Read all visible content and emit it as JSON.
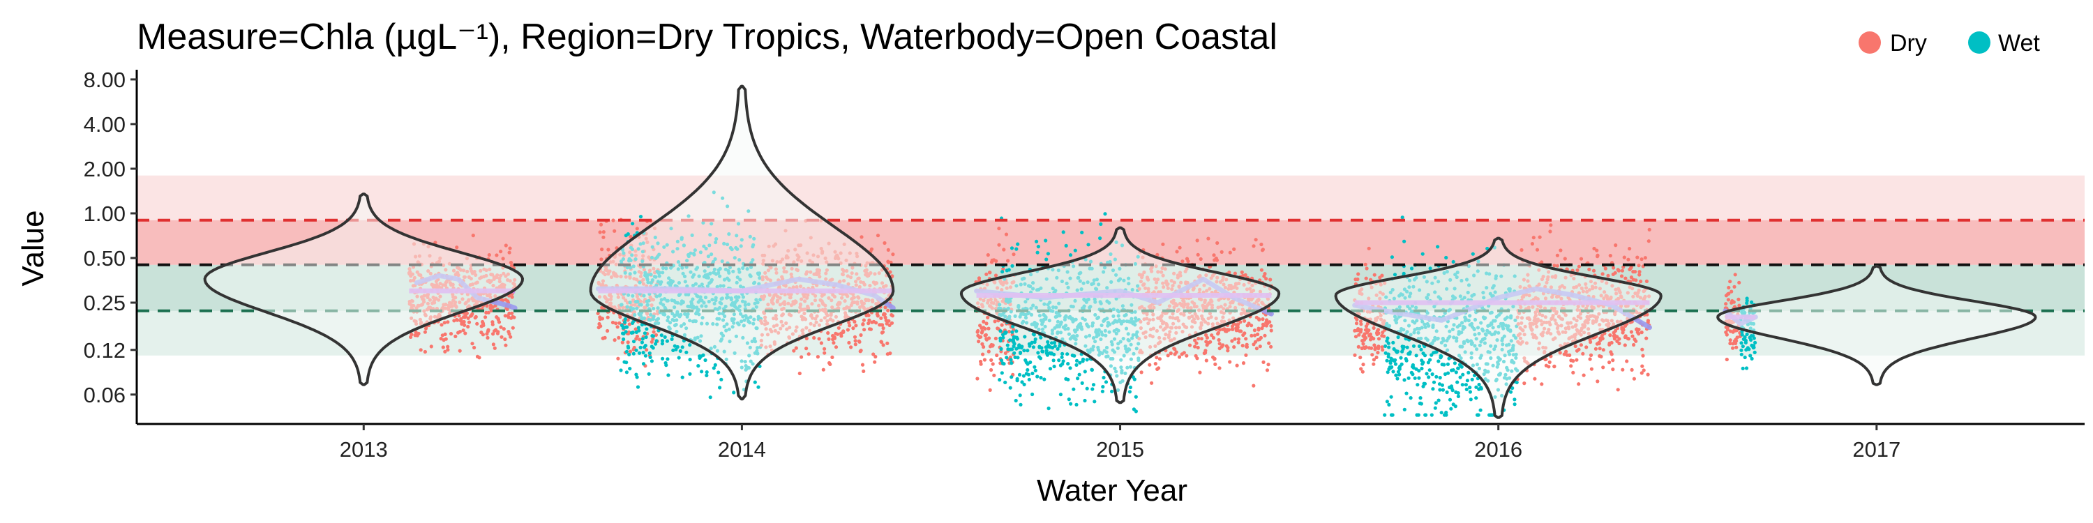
{
  "chart_data": {
    "type": "violin",
    "title": "Measure=Chla (µgL⁻¹), Region=Dry Tropics, Waterbody=Open Coastal",
    "xlabel": "Water Year",
    "ylabel": "Value",
    "y_scale": "log",
    "y_ticks": [
      0.06,
      0.12,
      0.25,
      0.5,
      1.0,
      2.0,
      4.0,
      8.0
    ],
    "y_tick_labels": [
      "0.06",
      "0.12",
      "0.25",
      "0.50",
      "1.00",
      "2.00",
      "4.00",
      "8.00"
    ],
    "ylim": [
      0.038,
      9.3
    ],
    "x_ticks": [
      2013,
      2014,
      2015,
      2016,
      2017
    ],
    "x_tick_labels": [
      "2013",
      "2014",
      "2015",
      "2016",
      "2017"
    ],
    "xlim": [
      2012.4,
      2017.55
    ],
    "legend": {
      "position": "top-right",
      "entries": [
        {
          "label": "Dry",
          "color": "#F8766D"
        },
        {
          "label": "Wet",
          "color": "#00BFC4"
        }
      ]
    },
    "bands": [
      {
        "from": 0.11,
        "to": 0.22,
        "color": "#e4f1ec"
      },
      {
        "from": 0.22,
        "to": 0.45,
        "color": "#c9e2d9"
      },
      {
        "from": 0.45,
        "to": 0.9,
        "color": "#f8bdbd"
      },
      {
        "from": 0.9,
        "to": 1.8,
        "color": "#fbe4e4"
      }
    ],
    "reference_lines": [
      {
        "value": 0.9,
        "color": "#e03030"
      },
      {
        "value": 0.45,
        "color": "#111111"
      },
      {
        "value": 0.22,
        "color": "#1b7050"
      }
    ],
    "violins": [
      {
        "year": 2013,
        "median": 0.36,
        "min": 0.07,
        "max": 1.35,
        "width": 0.42
      },
      {
        "year": 2014,
        "median": 0.3,
        "min": 0.056,
        "max": 7.2,
        "width": 0.4
      },
      {
        "year": 2015,
        "median": 0.29,
        "min": 0.053,
        "max": 0.8,
        "width": 0.42
      },
      {
        "year": 2016,
        "median": 0.28,
        "min": 0.042,
        "max": 0.68,
        "width": 0.43
      },
      {
        "year": 2017,
        "median": 0.2,
        "min": 0.07,
        "max": 0.44,
        "width": 0.42
      }
    ],
    "observations": [
      {
        "from": 2013.12,
        "to": 2013.4,
        "season": "Dry",
        "center": 0.27,
        "spread": 0.35
      },
      {
        "from": 2013.62,
        "to": 2013.78,
        "season": "Dry",
        "center": 0.28,
        "spread": 0.45
      },
      {
        "from": 2013.68,
        "to": 2014.05,
        "season": "Wet",
        "center": 0.26,
        "spread": 0.55
      },
      {
        "from": 2014.05,
        "to": 2014.4,
        "season": "Dry",
        "center": 0.26,
        "spread": 0.42
      },
      {
        "from": 2014.62,
        "to": 2014.72,
        "season": "Dry",
        "center": 0.22,
        "spread": 0.45
      },
      {
        "from": 2014.68,
        "to": 2015.05,
        "season": "Wet",
        "center": 0.18,
        "spread": 0.55
      },
      {
        "from": 2015.05,
        "to": 2015.4,
        "season": "Dry",
        "center": 0.23,
        "spread": 0.42
      },
      {
        "from": 2015.62,
        "to": 2015.7,
        "season": "Dry",
        "center": 0.2,
        "spread": 0.35
      },
      {
        "from": 2015.7,
        "to": 2016.05,
        "season": "Wet",
        "center": 0.14,
        "spread": 0.6
      },
      {
        "from": 2016.05,
        "to": 2016.4,
        "season": "Dry",
        "center": 0.22,
        "spread": 0.45
      },
      {
        "from": 2016.6,
        "to": 2016.64,
        "season": "Dry",
        "center": 0.2,
        "spread": 0.28
      },
      {
        "from": 2016.64,
        "to": 2016.68,
        "season": "Wet",
        "center": 0.16,
        "spread": 0.25
      }
    ],
    "smooth_series": [
      {
        "color": "#9999ee",
        "points": [
          [
            2013.14,
            0.34
          ],
          [
            2013.2,
            0.38
          ],
          [
            2013.25,
            0.36
          ],
          [
            2013.3,
            0.27
          ],
          [
            2013.38,
            0.24
          ],
          [
            2013.4,
            0.23
          ]
        ]
      },
      {
        "color": "#9999ee",
        "points": [
          [
            2013.62,
            0.31
          ],
          [
            2013.8,
            0.31
          ],
          [
            2014.0,
            0.3
          ],
          [
            2014.15,
            0.36
          ],
          [
            2014.25,
            0.33
          ],
          [
            2014.35,
            0.28
          ],
          [
            2014.4,
            0.23
          ]
        ]
      },
      {
        "color": "#9999ee",
        "points": [
          [
            2014.62,
            0.3
          ],
          [
            2014.8,
            0.27
          ],
          [
            2015.0,
            0.3
          ],
          [
            2015.1,
            0.25
          ],
          [
            2015.22,
            0.36
          ],
          [
            2015.3,
            0.27
          ],
          [
            2015.4,
            0.21
          ]
        ]
      },
      {
        "color": "#9999ee",
        "points": [
          [
            2015.62,
            0.24
          ],
          [
            2015.7,
            0.22
          ],
          [
            2015.85,
            0.19
          ],
          [
            2016.0,
            0.27
          ],
          [
            2016.1,
            0.31
          ],
          [
            2016.2,
            0.28
          ],
          [
            2016.3,
            0.24
          ],
          [
            2016.4,
            0.17
          ]
        ]
      },
      {
        "color": "#9999ee",
        "points": [
          [
            2016.6,
            0.22
          ],
          [
            2016.64,
            0.18
          ],
          [
            2016.68,
            0.2
          ]
        ]
      }
    ],
    "median_lines": [
      {
        "from": 2013.12,
        "to": 2013.4,
        "value": 0.3
      },
      {
        "from": 2013.62,
        "to": 2014.4,
        "value": 0.3
      },
      {
        "from": 2014.62,
        "to": 2015.4,
        "value": 0.28
      },
      {
        "from": 2015.62,
        "to": 2016.4,
        "value": 0.25
      },
      {
        "from": 2016.6,
        "to": 2016.68,
        "value": 0.2
      }
    ]
  }
}
